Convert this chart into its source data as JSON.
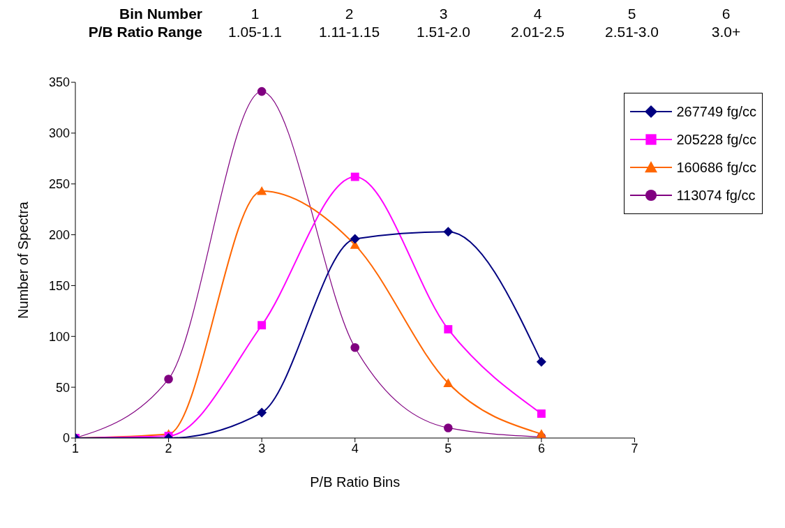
{
  "chart_data": {
    "type": "line",
    "xlabel": "P/B Ratio Bins",
    "ylabel": "Number of Spectra",
    "annotations": [
      "Bin Number",
      "1",
      "2",
      "3",
      "4",
      "5",
      "6",
      "P/B Ratio Range",
      "1.05-1.1",
      "1.11-1.15",
      "1.51-2.0",
      "2.01-2.5",
      "2.51-3.0",
      "3.0+"
    ],
    "x": [
      1,
      2,
      3,
      4,
      5,
      6
    ],
    "series": [
      {
        "name": "267749 fg/cc",
        "color": "#000080",
        "marker": "diamond",
        "values": [
          0,
          0,
          25,
          196,
          203,
          75
        ]
      },
      {
        "name": "205228 fg/cc",
        "color": "#ff00ff",
        "marker": "square",
        "values": [
          0,
          2,
          111,
          257,
          107,
          24
        ]
      },
      {
        "name": "160686 fg/cc",
        "color": "#ff6600",
        "marker": "triangle",
        "values": [
          0,
          4,
          243,
          190,
          54,
          4
        ]
      },
      {
        "name": "113074 fg/cc",
        "color": "#800080",
        "marker": "circle",
        "values": [
          0,
          58,
          341,
          89,
          10,
          1
        ]
      }
    ],
    "xlim": [
      1,
      7
    ],
    "xticks": [
      1,
      2,
      3,
      4,
      5,
      6,
      7
    ],
    "ylim": [
      0,
      350
    ],
    "yticks": [
      0,
      50,
      100,
      150,
      200,
      250,
      300,
      350
    ],
    "grid": false,
    "legend": "top right",
    "line_style": "solid"
  }
}
